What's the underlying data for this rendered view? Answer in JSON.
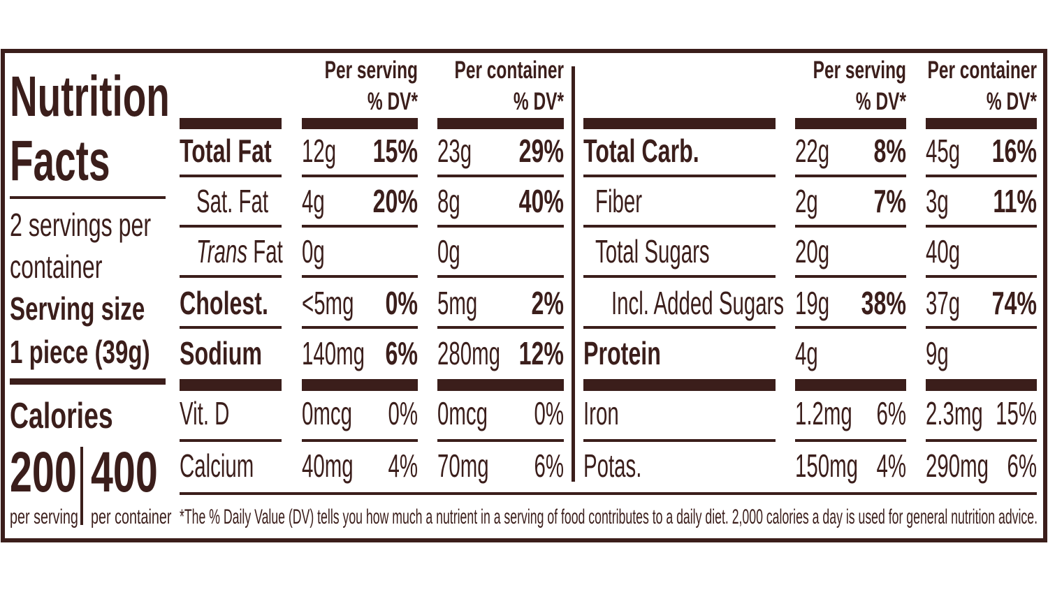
{
  "label": {
    "title_lines": [
      "Nutrition",
      "Facts"
    ],
    "servings_lines": [
      "2 servings per",
      "container"
    ],
    "serving_size_label": "Serving size",
    "serving_size": "1 piece (39g)",
    "calories_label": "Calories",
    "calories_per_serving": "200",
    "calories_per_container": "400",
    "per_serving_caption": "per serving",
    "per_container_caption": "per container",
    "header_per_serving": "Per serving",
    "header_per_container": "Per container",
    "header_dv": "% DV*",
    "left_table": {
      "rows": [
        {
          "name": "Total Fat",
          "serving_amount": "12g",
          "serving_dv": "15%",
          "container_amount": "23g",
          "container_dv": "29%"
        },
        {
          "name": "Sat. Fat",
          "serving_amount": "4g",
          "serving_dv": "20%",
          "container_amount": "8g",
          "container_dv": "40%"
        },
        {
          "name_italic": "Trans",
          "name": "Fat",
          "serving_amount": "0g",
          "container_amount": "0g"
        },
        {
          "name": "Cholest.",
          "serving_amount": "<5mg",
          "serving_dv": "0%",
          "container_amount": "5mg",
          "container_dv": "2%"
        },
        {
          "name": "Sodium",
          "serving_amount": "140mg",
          "serving_dv": "6%",
          "container_amount": "280mg",
          "container_dv": "12%"
        }
      ],
      "micros": [
        {
          "name": "Vit. D",
          "serving_amount": "0mcg",
          "serving_dv": "0%",
          "container_amount": "0mcg",
          "container_dv": "0%"
        },
        {
          "name": "Calcium",
          "serving_amount": "40mg",
          "serving_dv": "4%",
          "container_amount": "70mg",
          "container_dv": "6%"
        }
      ]
    },
    "right_table": {
      "rows": [
        {
          "name": "Total Carb.",
          "serving_amount": "22g",
          "serving_dv": "8%",
          "container_amount": "45g",
          "container_dv": "16%"
        },
        {
          "name": "Fiber",
          "serving_amount": "2g",
          "serving_dv": "7%",
          "container_amount": "3g",
          "container_dv": "11%"
        },
        {
          "name": "Total Sugars",
          "serving_amount": "20g",
          "container_amount": "40g"
        },
        {
          "name": "Incl. Added Sugars",
          "serving_amount": "19g",
          "serving_dv": "38%",
          "container_amount": "37g",
          "container_dv": "74%"
        },
        {
          "name": "Protein",
          "serving_amount": "4g",
          "container_amount": "9g"
        }
      ],
      "micros": [
        {
          "name": "Iron",
          "serving_amount": "1.2mg",
          "serving_dv": "6%",
          "container_amount": "2.3mg",
          "container_dv": "15%"
        },
        {
          "name": "Potas.",
          "serving_amount": "150mg",
          "serving_dv": "4%",
          "container_amount": "290mg",
          "container_dv": "6%"
        }
      ]
    },
    "footnote": "*The % Daily Value (DV) tells you how much a nutrient in a serving of food contributes to a daily diet. 2,000 calories a day is used for general nutrition advice."
  }
}
